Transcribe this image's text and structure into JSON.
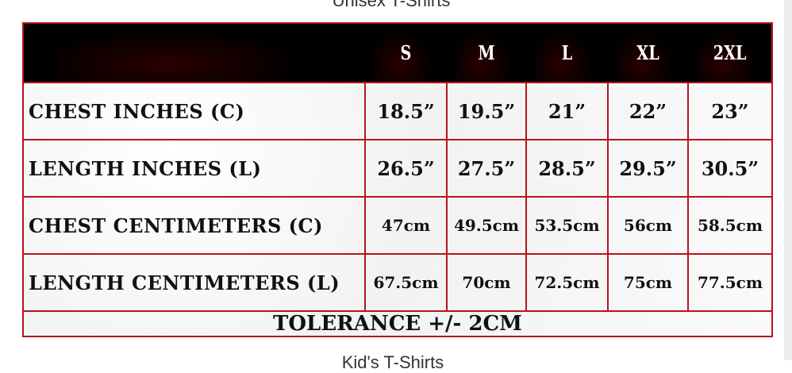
{
  "headings": {
    "top": "Unisex T-Shirts",
    "bottom": "Kid's T-Shirts"
  },
  "table": {
    "sizes": [
      "S",
      "M",
      "L",
      "XL",
      "2XL"
    ],
    "rows": [
      {
        "label": "CHEST INCHES (C)",
        "values": [
          "18.5”",
          "19.5”",
          "21”",
          "22”",
          "23”"
        ]
      },
      {
        "label": "LENGTH INCHES (L)",
        "values": [
          "26.5”",
          "27.5”",
          "28.5”",
          "29.5”",
          "30.5”"
        ]
      },
      {
        "label": "CHEST CENTIMETERS (C)",
        "values": [
          "47cm",
          "49.5cm",
          "53.5cm",
          "56cm",
          "58.5cm"
        ]
      },
      {
        "label": "LENGTH CENTIMETERS (L)",
        "values": [
          "67.5cm",
          "70cm",
          "72.5cm",
          "75cm",
          "77.5cm"
        ]
      }
    ],
    "footer": "TOLERANCE +/- 2CM"
  },
  "colors": {
    "border": "#b5151b",
    "header_bg": "#000000"
  }
}
